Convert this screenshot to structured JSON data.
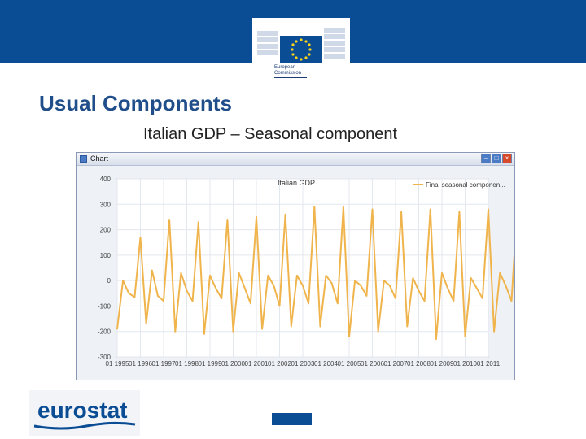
{
  "header": {
    "org_line1": "European",
    "org_line2": "Commission"
  },
  "slide": {
    "title": "Usual Components",
    "subtitle": "Italian GDP – Seasonal component"
  },
  "window": {
    "title": "Chart"
  },
  "footer": {
    "logo_text": "eurostat"
  },
  "colors": {
    "brand_blue": "#0b4d95",
    "series": "#f0b44c",
    "title_blue": "#1f4e8a"
  },
  "chart_data": {
    "type": "line",
    "title": "Italian GDP",
    "xlabel": "",
    "ylabel": "",
    "ylim": [
      -300,
      400
    ],
    "yticks": [
      400,
      300,
      200,
      100,
      0,
      -100,
      -200,
      -300
    ],
    "grid": true,
    "legend_position": "top-right",
    "x_tick_labels": [
      "01 1995",
      "01 1996",
      "01 1997",
      "01 1998",
      "01 1999",
      "01 2000",
      "01 2001",
      "01 2002",
      "01 2003",
      "01 2004",
      "01 2005",
      "01 2006",
      "01 2007",
      "01 2008",
      "01 2009",
      "01 2010",
      "01 2011"
    ],
    "x_start_year": 1995,
    "series": [
      {
        "name": "Final seasonal componen...",
        "values": [
          -190,
          0,
          -50,
          -65,
          170,
          -170,
          40,
          -60,
          -80,
          240,
          -200,
          30,
          -40,
          -80,
          230,
          -210,
          20,
          -30,
          -70,
          240,
          -200,
          30,
          -30,
          -90,
          250,
          -190,
          20,
          -20,
          -100,
          260,
          -180,
          20,
          -20,
          -90,
          290,
          -180,
          20,
          -10,
          -90,
          290,
          -220,
          0,
          -20,
          -60,
          280,
          -200,
          0,
          -20,
          -70,
          270,
          -180,
          10,
          -40,
          -80,
          280,
          -230,
          30,
          -30,
          -80,
          270,
          -220,
          10,
          -30,
          -70,
          280,
          -200,
          30,
          -20,
          -80,
          290,
          -250,
          30,
          -20,
          -80,
          270,
          -230,
          30,
          -50
        ]
      }
    ]
  }
}
